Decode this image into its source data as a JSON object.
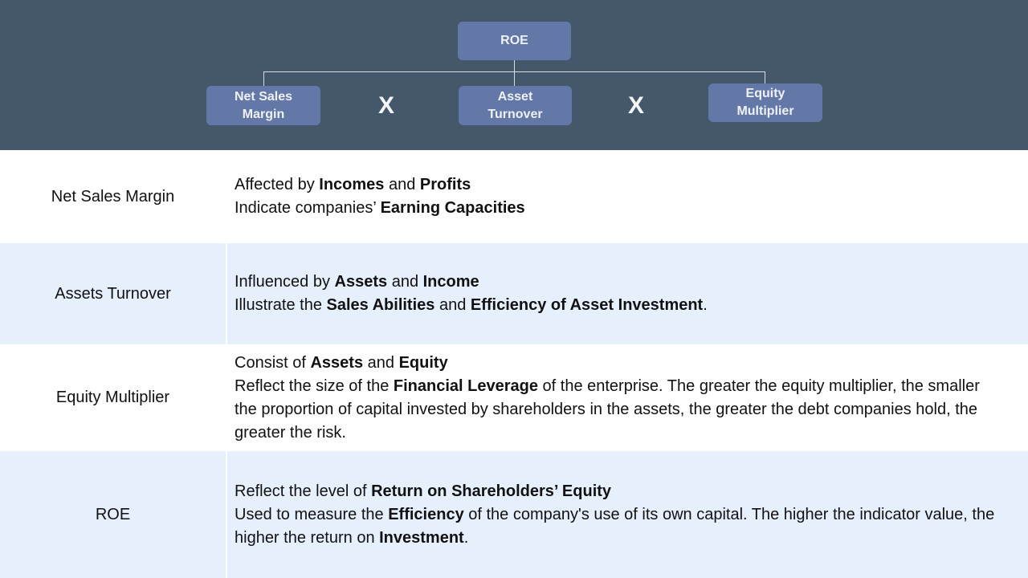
{
  "diagram": {
    "root": "ROE",
    "factors": [
      "Net Sales\nMargin",
      "Asset\nTurnover",
      "Equity\nMultiplier"
    ],
    "operator": "X"
  },
  "rows": [
    {
      "label": "Net Sales Margin",
      "lines": [
        [
          {
            "t": "Affected by "
          },
          {
            "t": "Incomes",
            "b": true
          },
          {
            "t": " and "
          },
          {
            "t": "Profits",
            "b": true
          }
        ],
        [
          {
            "t": "Indicate companies’ "
          },
          {
            "t": "Earning Capacities",
            "b": true
          }
        ]
      ]
    },
    {
      "label": "Assets Turnover",
      "lines": [
        [
          {
            "t": "Influenced by "
          },
          {
            "t": "Assets",
            "b": true
          },
          {
            "t": " and "
          },
          {
            "t": "Income",
            "b": true
          }
        ],
        [
          {
            "t": "Illustrate the "
          },
          {
            "t": "Sales Abilities",
            "b": true
          },
          {
            "t": " and "
          },
          {
            "t": "Efficiency of Asset Investment",
            "b": true
          },
          {
            "t": "."
          }
        ]
      ]
    },
    {
      "label": "Equity Multiplier",
      "lines": [
        [
          {
            "t": "Consist of "
          },
          {
            "t": "Assets",
            "b": true
          },
          {
            "t": " and "
          },
          {
            "t": "Equity",
            "b": true
          }
        ],
        [
          {
            "t": "Reflect the size of the "
          },
          {
            "t": "Financial Leverage",
            "b": true
          },
          {
            "t": " of the enterprise. The greater the equity multiplier, the smaller the proportion of capital invested by shareholders in the assets, the greater the debt companies hold, the greater the risk."
          }
        ]
      ]
    },
    {
      "label": "ROE",
      "lines": [
        [
          {
            "t": "Reflect the level of "
          },
          {
            "t": "Return on Shareholders’ Equity",
            "b": true
          }
        ],
        [
          {
            "t": "Used to measure the "
          },
          {
            "t": "Efficiency",
            "b": true
          },
          {
            "t": " of the company's use of its own capital. The higher the indicator value, the higher the return on "
          },
          {
            "t": "Investment",
            "b": true
          },
          {
            "t": "."
          }
        ]
      ]
    }
  ]
}
